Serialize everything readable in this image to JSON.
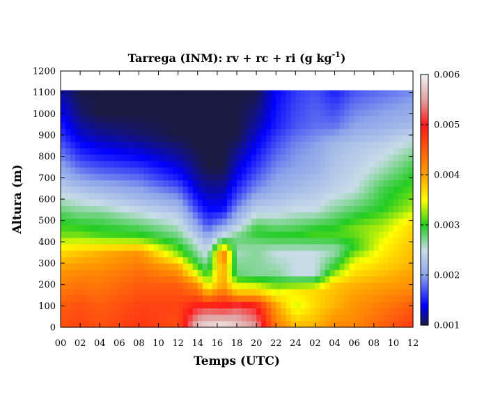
{
  "chart_data": {
    "type": "heatmap",
    "title": "Tarrega (INM): rv + rc + ri (g kg",
    "title_sup": "-1",
    "title_close": ")",
    "xlabel": "Temps (UTC)",
    "ylabel": "Altura (m)",
    "x_tick_labels": [
      "00",
      "02",
      "04",
      "06",
      "08",
      "10",
      "12",
      "14",
      "16",
      "18",
      "20",
      "22",
      "24",
      "02",
      "04",
      "06",
      "08",
      "10",
      "12"
    ],
    "x_range_hours": [
      0,
      36
    ],
    "y_ticks": [
      0,
      100,
      200,
      300,
      400,
      500,
      600,
      700,
      800,
      900,
      1000,
      1100,
      1200
    ],
    "y_tick_labels": [
      "0",
      "100",
      "200",
      "300",
      "400",
      "500",
      "600",
      "700",
      "800",
      "900",
      "1000",
      "1100",
      "1200"
    ],
    "ylim": [
      0,
      1200
    ],
    "data_top_m": 1110,
    "colorbar": {
      "range": [
        0.001,
        0.006
      ],
      "tick_labels": [
        "0.001",
        "0.002",
        "0.003",
        "0.004",
        "0.005",
        "0.006"
      ],
      "colors": [
        {
          "v": 0.001,
          "c": "#1a1a40"
        },
        {
          "v": 0.0014,
          "c": "#0000ff"
        },
        {
          "v": 0.002,
          "c": "#8ca4ea"
        },
        {
          "v": 0.0025,
          "c": "#c8dce8"
        },
        {
          "v": 0.003,
          "c": "#22cc22"
        },
        {
          "v": 0.0035,
          "c": "#ffff00"
        },
        {
          "v": 0.004,
          "c": "#ffa000"
        },
        {
          "v": 0.005,
          "c": "#ff1a1a"
        },
        {
          "v": 0.0055,
          "c": "#e0a0a0"
        },
        {
          "v": 0.006,
          "c": "#f2f2f2"
        }
      ]
    },
    "profiles": [
      {
        "t": 0,
        "levels": [
          [
            0,
            0.0046
          ],
          [
            100,
            0.0045
          ],
          [
            250,
            0.0041
          ],
          [
            350,
            0.0037
          ],
          [
            430,
            0.0032
          ],
          [
            520,
            0.0029
          ],
          [
            620,
            0.0025
          ],
          [
            700,
            0.0022
          ],
          [
            800,
            0.0019
          ],
          [
            900,
            0.0016
          ],
          [
            1000,
            0.0014
          ],
          [
            1110,
            0.0012
          ]
        ]
      },
      {
        "t": 2,
        "levels": [
          [
            0,
            0.0047
          ],
          [
            100,
            0.0046
          ],
          [
            250,
            0.0042
          ],
          [
            350,
            0.0038
          ],
          [
            430,
            0.0032
          ],
          [
            520,
            0.0028
          ],
          [
            620,
            0.0024
          ],
          [
            700,
            0.002
          ],
          [
            800,
            0.0016
          ],
          [
            900,
            0.0013
          ],
          [
            1000,
            0.0011
          ],
          [
            1110,
            0.001
          ]
        ]
      },
      {
        "t": 4,
        "levels": [
          [
            0,
            0.0046
          ],
          [
            100,
            0.0045
          ],
          [
            250,
            0.0042
          ],
          [
            350,
            0.0039
          ],
          [
            430,
            0.0031
          ],
          [
            520,
            0.0028
          ],
          [
            600,
            0.0024
          ],
          [
            700,
            0.0019
          ],
          [
            800,
            0.0015
          ],
          [
            900,
            0.0012
          ],
          [
            1000,
            0.001
          ],
          [
            1110,
            0.001
          ]
        ]
      },
      {
        "t": 8,
        "levels": [
          [
            0,
            0.0048
          ],
          [
            100,
            0.0047
          ],
          [
            250,
            0.0044
          ],
          [
            350,
            0.0041
          ],
          [
            420,
            0.0031
          ],
          [
            520,
            0.0026
          ],
          [
            600,
            0.0022
          ],
          [
            700,
            0.0018
          ],
          [
            800,
            0.0014
          ],
          [
            900,
            0.0011
          ],
          [
            1000,
            0.001
          ],
          [
            1110,
            0.001
          ]
        ]
      },
      {
        "t": 12,
        "levels": [
          [
            0,
            0.0046
          ],
          [
            100,
            0.0047
          ],
          [
            200,
            0.0045
          ],
          [
            280,
            0.004
          ],
          [
            350,
            0.0032
          ],
          [
            420,
            0.0028
          ],
          [
            520,
            0.0024
          ],
          [
            600,
            0.002
          ],
          [
            700,
            0.0015
          ],
          [
            800,
            0.0012
          ],
          [
            900,
            0.001
          ],
          [
            1110,
            0.001
          ]
        ]
      },
      {
        "t": 14,
        "levels": [
          [
            0,
            0.0058
          ],
          [
            100,
            0.005
          ],
          [
            200,
            0.0041
          ],
          [
            260,
            0.0033
          ],
          [
            320,
            0.0028
          ],
          [
            400,
            0.0025
          ],
          [
            480,
            0.002
          ],
          [
            560,
            0.0016
          ],
          [
            650,
            0.0013
          ],
          [
            750,
            0.0011
          ],
          [
            850,
            0.001
          ],
          [
            1110,
            0.001
          ]
        ]
      },
      {
        "t": 15,
        "levels": [
          [
            0,
            0.0059
          ],
          [
            90,
            0.0052
          ],
          [
            150,
            0.0041
          ],
          [
            200,
            0.0034
          ],
          [
            280,
            0.0028
          ],
          [
            380,
            0.0023
          ],
          [
            480,
            0.0017
          ],
          [
            560,
            0.0014
          ],
          [
            650,
            0.0012
          ],
          [
            750,
            0.001
          ],
          [
            1110,
            0.001
          ]
        ]
      },
      {
        "t": 16.6,
        "levels": [
          [
            0,
            0.006
          ],
          [
            100,
            0.005
          ],
          [
            200,
            0.004
          ],
          [
            280,
            0.004
          ],
          [
            340,
            0.0044
          ],
          [
            380,
            0.0035
          ],
          [
            420,
            0.0026
          ],
          [
            500,
            0.0018
          ],
          [
            560,
            0.0014
          ],
          [
            650,
            0.0012
          ],
          [
            750,
            0.001
          ],
          [
            1110,
            0.001
          ]
        ]
      },
      {
        "t": 18,
        "levels": [
          [
            0,
            0.0058
          ],
          [
            100,
            0.0052
          ],
          [
            150,
            0.004
          ],
          [
            250,
            0.0028
          ],
          [
            350,
            0.0026
          ],
          [
            420,
            0.0028
          ],
          [
            500,
            0.0022
          ],
          [
            600,
            0.0017
          ],
          [
            700,
            0.0014
          ],
          [
            800,
            0.0012
          ],
          [
            900,
            0.001
          ],
          [
            1110,
            0.001
          ]
        ]
      },
      {
        "t": 20,
        "levels": [
          [
            0,
            0.0055
          ],
          [
            100,
            0.005
          ],
          [
            150,
            0.004
          ],
          [
            250,
            0.0027
          ],
          [
            380,
            0.0027
          ],
          [
            450,
            0.003
          ],
          [
            550,
            0.0024
          ],
          [
            650,
            0.0019
          ],
          [
            750,
            0.0016
          ],
          [
            850,
            0.0014
          ],
          [
            950,
            0.0012
          ],
          [
            1110,
            0.001
          ]
        ]
      },
      {
        "t": 22,
        "levels": [
          [
            0,
            0.0043
          ],
          [
            100,
            0.004
          ],
          [
            170,
            0.0034
          ],
          [
            250,
            0.0027
          ],
          [
            350,
            0.0025
          ],
          [
            430,
            0.003
          ],
          [
            550,
            0.0024
          ],
          [
            650,
            0.0021
          ],
          [
            750,
            0.0019
          ],
          [
            850,
            0.0017
          ],
          [
            950,
            0.0015
          ],
          [
            1110,
            0.0014
          ]
        ]
      },
      {
        "t": 24,
        "levels": [
          [
            0,
            0.0039
          ],
          [
            100,
            0.0034
          ],
          [
            170,
            0.0036
          ],
          [
            250,
            0.0025
          ],
          [
            350,
            0.0025
          ],
          [
            430,
            0.003
          ],
          [
            550,
            0.0025
          ],
          [
            650,
            0.0022
          ],
          [
            750,
            0.002
          ],
          [
            850,
            0.0019
          ],
          [
            950,
            0.0017
          ],
          [
            1110,
            0.0016
          ]
        ]
      },
      {
        "t": 26,
        "levels": [
          [
            0,
            0.0039
          ],
          [
            100,
            0.0037
          ],
          [
            170,
            0.0037
          ],
          [
            250,
            0.0025
          ],
          [
            350,
            0.0025
          ],
          [
            440,
            0.0031
          ],
          [
            550,
            0.0025
          ],
          [
            650,
            0.0023
          ],
          [
            750,
            0.0021
          ],
          [
            850,
            0.002
          ],
          [
            950,
            0.0018
          ],
          [
            1110,
            0.0017
          ]
        ]
      },
      {
        "t": 28,
        "levels": [
          [
            0,
            0.0042
          ],
          [
            100,
            0.0039
          ],
          [
            200,
            0.0038
          ],
          [
            280,
            0.003
          ],
          [
            360,
            0.0026
          ],
          [
            440,
            0.0031
          ],
          [
            550,
            0.0027
          ],
          [
            650,
            0.0024
          ],
          [
            750,
            0.0023
          ],
          [
            850,
            0.0022
          ],
          [
            950,
            0.0018
          ],
          [
            1110,
            0.0015
          ]
        ]
      },
      {
        "t": 30,
        "levels": [
          [
            0,
            0.0042
          ],
          [
            100,
            0.0041
          ],
          [
            200,
            0.0039
          ],
          [
            300,
            0.0035
          ],
          [
            380,
            0.003
          ],
          [
            460,
            0.0032
          ],
          [
            560,
            0.0028
          ],
          [
            650,
            0.0025
          ],
          [
            750,
            0.0024
          ],
          [
            850,
            0.0023
          ],
          [
            950,
            0.002
          ],
          [
            1110,
            0.0017
          ]
        ]
      },
      {
        "t": 33,
        "levels": [
          [
            0,
            0.0045
          ],
          [
            100,
            0.0043
          ],
          [
            200,
            0.004
          ],
          [
            300,
            0.0037
          ],
          [
            400,
            0.0035
          ],
          [
            480,
            0.0033
          ],
          [
            560,
            0.003
          ],
          [
            650,
            0.0029
          ],
          [
            750,
            0.0026
          ],
          [
            850,
            0.0024
          ],
          [
            950,
            0.0021
          ],
          [
            1110,
            0.0018
          ]
        ]
      },
      {
        "t": 36,
        "levels": [
          [
            0,
            0.0048
          ],
          [
            100,
            0.0045
          ],
          [
            200,
            0.0041
          ],
          [
            300,
            0.0039
          ],
          [
            400,
            0.0038
          ],
          [
            480,
            0.0037
          ],
          [
            560,
            0.0033
          ],
          [
            650,
            0.0031
          ],
          [
            750,
            0.0029
          ],
          [
            850,
            0.0026
          ],
          [
            950,
            0.0022
          ],
          [
            1110,
            0.0019
          ]
        ]
      }
    ]
  }
}
